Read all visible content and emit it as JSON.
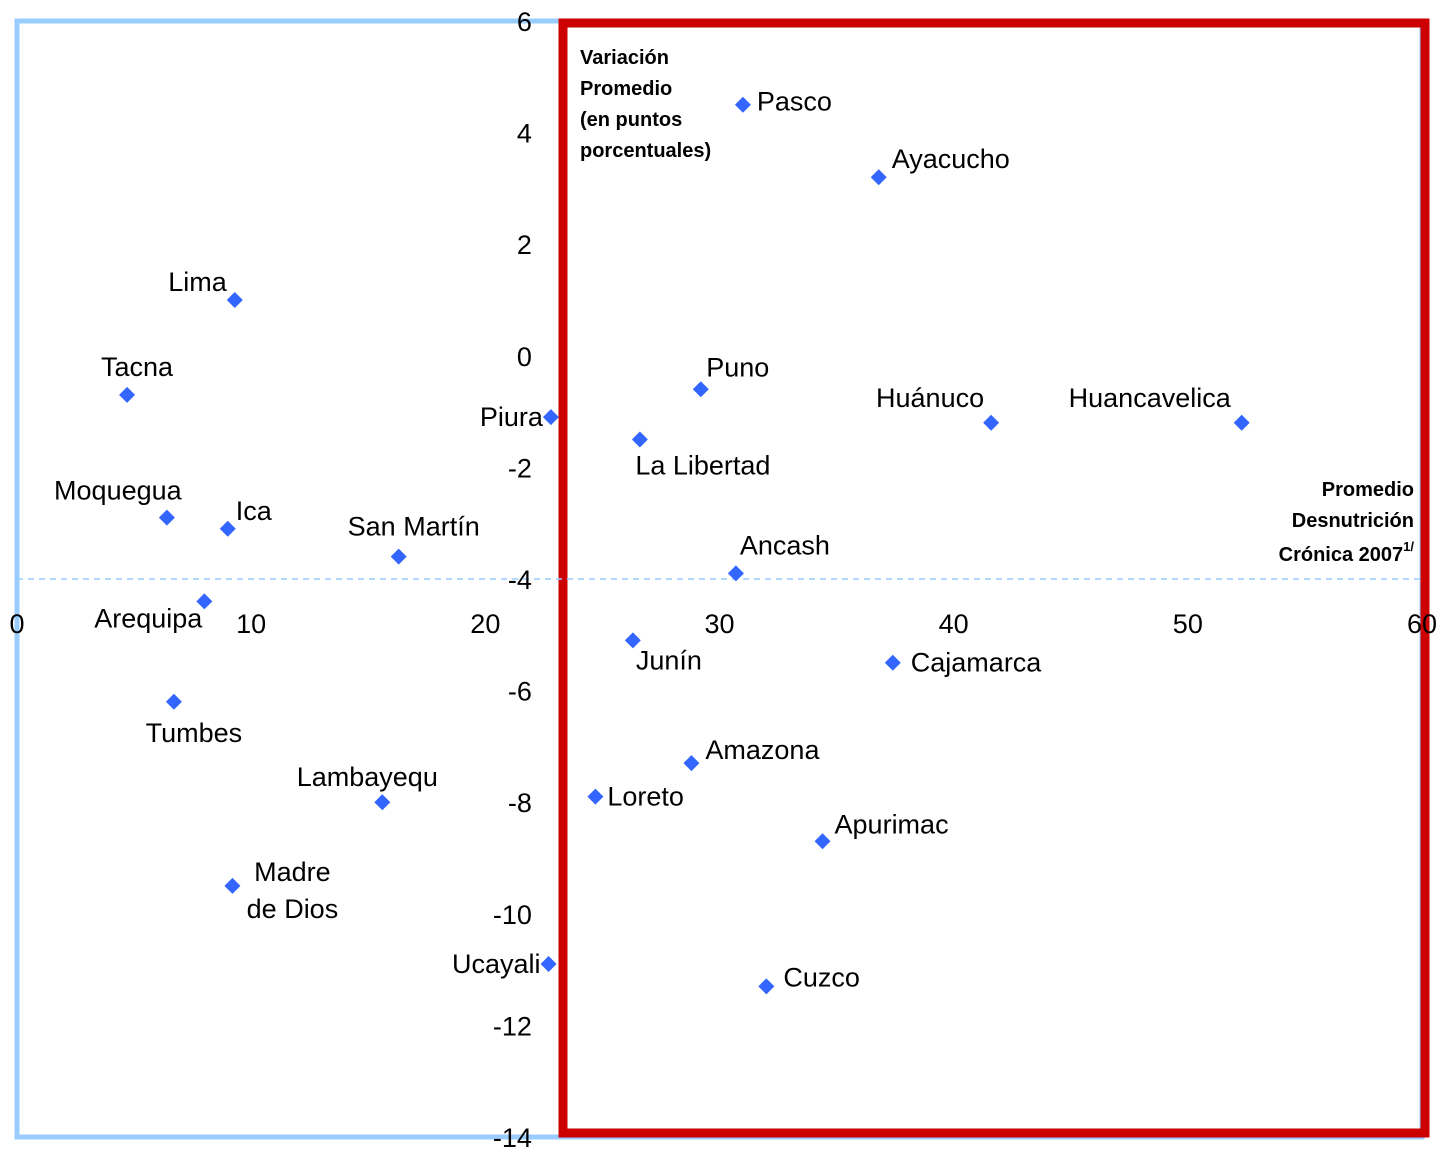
{
  "chart_data": {
    "type": "scatter",
    "xlim": [
      0,
      60
    ],
    "ylim": [
      -14,
      6
    ],
    "x_ticks": [
      "0",
      "10",
      "20",
      "30",
      "40",
      "50",
      "60"
    ],
    "y_ticks": [
      "6",
      "4",
      "2",
      "0",
      "-2",
      "-4",
      "-6",
      "-8",
      "-10",
      "-12",
      "-14"
    ],
    "ylabel_lines": [
      "Variación",
      "Promedio",
      "(en puntos",
      "porcentuales)"
    ],
    "xlabel_lines": [
      "Promedio",
      "Desnutrición",
      "Crónica 2007"
    ],
    "xlabel_superscript": "1/",
    "reference_line_y": -4,
    "colors": {
      "marker": "#3366ff",
      "left_box": "#99ccff",
      "right_box": "#cc0000",
      "reference_line": "#99ccff"
    },
    "points": [
      {
        "name": "Pasco",
        "x": 31.0,
        "y": 4.5
      },
      {
        "name": "Ayacucho",
        "x": 36.8,
        "y": 3.2
      },
      {
        "name": "Lima",
        "x": 9.3,
        "y": 1.0
      },
      {
        "name": "Tacna",
        "x": 4.7,
        "y": -0.7
      },
      {
        "name": "Puno",
        "x": 29.2,
        "y": -0.6
      },
      {
        "name": "Piura",
        "x": 22.8,
        "y": -1.1
      },
      {
        "name": "La Libertad",
        "x": 26.6,
        "y": -1.5
      },
      {
        "name": "Huánuco",
        "x": 41.6,
        "y": -1.2
      },
      {
        "name": "Huancavelica",
        "x": 52.3,
        "y": -1.2
      },
      {
        "name": "Moquegua",
        "x": 6.4,
        "y": -2.9
      },
      {
        "name": "Ica",
        "x": 9.0,
        "y": -3.1
      },
      {
        "name": "San Martín",
        "x": 16.3,
        "y": -3.6
      },
      {
        "name": "Ancash",
        "x": 30.7,
        "y": -3.9
      },
      {
        "name": "Arequipa",
        "x": 8.0,
        "y": -4.4
      },
      {
        "name": "Junín",
        "x": 26.3,
        "y": -5.1
      },
      {
        "name": "Cajamarca",
        "x": 37.4,
        "y": -5.5
      },
      {
        "name": "Tumbes",
        "x": 6.7,
        "y": -6.2
      },
      {
        "name": "Amazona",
        "x": 28.8,
        "y": -7.3
      },
      {
        "name": "Lambayequ",
        "x": 15.6,
        "y": -8.0
      },
      {
        "name": "Loreto",
        "x": 24.7,
        "y": -7.9
      },
      {
        "name": "Apurimac",
        "x": 34.4,
        "y": -8.7
      },
      {
        "name": "Madre de Dios",
        "x": 9.2,
        "y": -9.5
      },
      {
        "name": "Ucayali",
        "x": 22.7,
        "y": -10.9
      },
      {
        "name": "Cuzco",
        "x": 32.0,
        "y": -11.3
      }
    ]
  }
}
